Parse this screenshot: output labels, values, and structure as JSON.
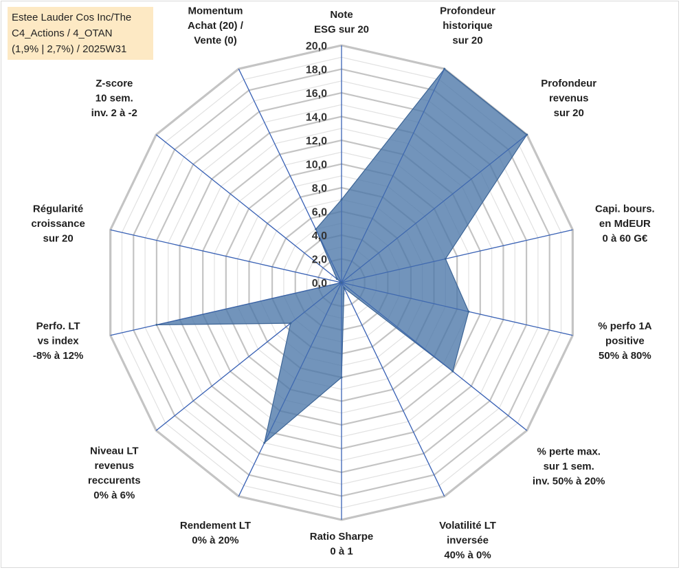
{
  "chart_data": {
    "type": "radar",
    "title_lines": [
      "Estee Lauder Cos Inc/The",
      "C4_Actions / 4_OTAN",
      "(1,9% | 2,7%) / 2025W31"
    ],
    "scale": {
      "min": 0,
      "max": 20,
      "step": 2
    },
    "ticks": [
      "0,0",
      "2,0",
      "4,0",
      "6,0",
      "8,0",
      "10,0",
      "12,0",
      "14,0",
      "16,0",
      "18,0",
      "20,0"
    ],
    "axes": [
      {
        "label": [
          "Note",
          "ESG sur 20"
        ],
        "value": 7.0
      },
      {
        "label": [
          "Profondeur",
          "historique",
          "sur 20"
        ],
        "value": 20.0
      },
      {
        "label": [
          "Profondeur",
          "revenus",
          "sur 20"
        ],
        "value": 20.0
      },
      {
        "label": [
          "Capi. bours.",
          "en MdEUR",
          "0 à 60 G€"
        ],
        "value": 9.0
      },
      {
        "label": [
          "% perfo 1A",
          "positive",
          "50% à 80%"
        ],
        "value": 11.0
      },
      {
        "label": [
          "% perte max.",
          "sur 1 sem.",
          "inv. 50% à 20%"
        ],
        "value": 12.0
      },
      {
        "label": [
          "Volatilité LT",
          "inversée",
          "40% à 0%"
        ],
        "value": 0.5
      },
      {
        "label": [
          "Ratio Sharpe",
          "0 à 1"
        ],
        "value": 8.0
      },
      {
        "label": [
          "Rendement LT",
          "0% à 20%"
        ],
        "value": 15.0
      },
      {
        "label": [
          "Niveau LT",
          "revenus",
          "reccurents",
          "0% à 6%"
        ],
        "value": 5.5
      },
      {
        "label": [
          "Perfo. LT",
          "vs index",
          "-8% à 12%"
        ],
        "value": 16.0
      },
      {
        "label": [
          "Régularité",
          "croissance",
          "sur 20"
        ],
        "value": 0.0
      },
      {
        "label": [
          "Z-score",
          "10 sem.",
          "inv. 2 à -2"
        ],
        "value": 0.5
      },
      {
        "label": [
          "Momentum",
          "Achat (20) /",
          "Vente (0)"
        ],
        "value": 5.0
      }
    ],
    "colors": {
      "fill": "#4a76a8",
      "grid": "#c4c4c4",
      "spoke": "#3b63b5"
    }
  }
}
